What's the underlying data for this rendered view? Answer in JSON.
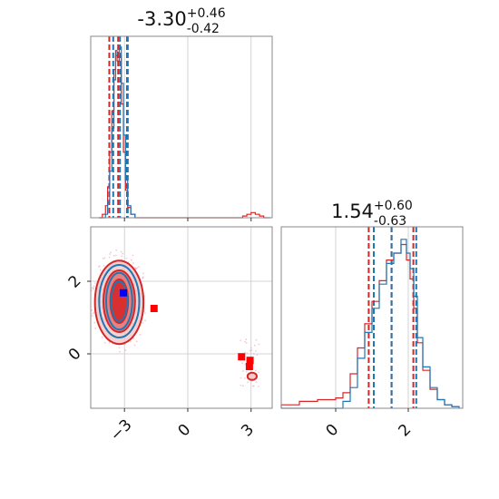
{
  "chart_data": {
    "type": "corner",
    "grid": true,
    "series": [
      {
        "color": "#d62728"
      },
      {
        "color": "#1f77b4"
      }
    ],
    "params": [
      {
        "median": "-3.30",
        "upper": "+0.46",
        "lower": "-0.42",
        "range": [
          -4.6,
          4.0
        ],
        "ticks": [
          {
            "v": -3,
            "label": "−3"
          },
          {
            "v": 0,
            "label": "0"
          },
          {
            "v": 3,
            "label": "3"
          }
        ],
        "quantiles": {
          "red": [
            -3.72,
            -3.3,
            -2.88
          ],
          "blue": [
            -3.62,
            -3.3,
            -2.93
          ]
        }
      },
      {
        "median": "1.54",
        "upper": "+0.60",
        "lower": "-0.63",
        "range": [
          -1.5,
          3.5
        ],
        "ticks": [
          {
            "v": 0,
            "label": "0"
          },
          {
            "v": 2,
            "label": "2"
          }
        ],
        "quantiles": {
          "red": [
            0.91,
            1.54,
            2.14
          ],
          "blue": [
            1.05,
            1.54,
            2.22
          ]
        }
      }
    ],
    "hist_x": [
      {
        "red": [
          [
            -4.2,
            0.0
          ],
          [
            -4.05,
            0.02
          ],
          [
            -3.9,
            0.07
          ],
          [
            -3.8,
            0.18
          ],
          [
            -3.7,
            0.38
          ],
          [
            -3.6,
            0.62
          ],
          [
            -3.5,
            0.86
          ],
          [
            -3.42,
            0.97
          ],
          [
            -3.35,
            0.91
          ],
          [
            -3.25,
            0.94
          ],
          [
            -3.15,
            0.66
          ],
          [
            -3.05,
            0.38
          ],
          [
            -2.95,
            0.16
          ],
          [
            -2.85,
            0.06
          ],
          [
            -2.7,
            0.02
          ],
          [
            -2.5,
            0.0
          ],
          [
            -1.0,
            0.0
          ],
          [
            2.4,
            0.0
          ],
          [
            2.6,
            0.01
          ],
          [
            2.8,
            0.02
          ],
          [
            3.0,
            0.03
          ],
          [
            3.2,
            0.02
          ],
          [
            3.4,
            0.01
          ],
          [
            3.6,
            0.0
          ],
          [
            3.9,
            0.0
          ]
        ],
        "blue": [
          [
            -4.2,
            0.0
          ],
          [
            -3.9,
            0.02
          ],
          [
            -3.8,
            0.09
          ],
          [
            -3.7,
            0.27
          ],
          [
            -3.6,
            0.52
          ],
          [
            -3.5,
            0.8
          ],
          [
            -3.42,
            0.94
          ],
          [
            -3.35,
            0.96
          ],
          [
            -3.25,
            0.99
          ],
          [
            -3.15,
            0.78
          ],
          [
            -3.05,
            0.48
          ],
          [
            -2.95,
            0.22
          ],
          [
            -2.85,
            0.07
          ],
          [
            -2.7,
            0.02
          ],
          [
            -2.5,
            0.0
          ]
        ]
      },
      {
        "red": [
          [
            -1.5,
            0.02
          ],
          [
            -1.0,
            0.04
          ],
          [
            -0.5,
            0.05
          ],
          [
            0.0,
            0.06
          ],
          [
            0.2,
            0.09
          ],
          [
            0.4,
            0.2
          ],
          [
            0.6,
            0.35
          ],
          [
            0.8,
            0.49
          ],
          [
            1.0,
            0.62
          ],
          [
            1.2,
            0.74
          ],
          [
            1.4,
            0.86
          ],
          [
            1.6,
            0.9
          ],
          [
            1.8,
            0.95
          ],
          [
            1.95,
            0.86
          ],
          [
            2.05,
            0.75
          ],
          [
            2.15,
            0.58
          ],
          [
            2.25,
            0.38
          ],
          [
            2.4,
            0.22
          ],
          [
            2.6,
            0.11
          ],
          [
            2.8,
            0.05
          ],
          [
            3.0,
            0.02
          ],
          [
            3.2,
            0.01
          ],
          [
            3.4,
            0.0
          ]
        ],
        "blue": [
          [
            -1.5,
            0.0
          ],
          [
            0.0,
            0.0
          ],
          [
            0.2,
            0.04
          ],
          [
            0.4,
            0.12
          ],
          [
            0.6,
            0.29
          ],
          [
            0.8,
            0.44
          ],
          [
            1.0,
            0.58
          ],
          [
            1.2,
            0.72
          ],
          [
            1.4,
            0.84
          ],
          [
            1.6,
            0.9
          ],
          [
            1.8,
            0.98
          ],
          [
            1.95,
            0.9
          ],
          [
            2.05,
            0.81
          ],
          [
            2.15,
            0.65
          ],
          [
            2.25,
            0.41
          ],
          [
            2.4,
            0.24
          ],
          [
            2.6,
            0.12
          ],
          [
            2.8,
            0.05
          ],
          [
            3.0,
            0.02
          ],
          [
            3.2,
            0.01
          ],
          [
            3.4,
            0.0
          ]
        ]
      }
    ],
    "contours": {
      "red": [
        {
          "level": "outer",
          "cx": -3.25,
          "cy": 1.42,
          "rx": 1.15,
          "ry": 1.15,
          "fill": "#f2c4c4",
          "opacity": 0.75
        },
        {
          "level": "middle",
          "cx": -3.25,
          "cy": 1.45,
          "rx": 0.75,
          "ry": 0.85,
          "fill": "#e06666",
          "opacity": 0.75
        },
        {
          "level": "inner",
          "cx": -3.25,
          "cy": 1.45,
          "rx": 0.42,
          "ry": 0.6,
          "fill": "#d62728",
          "opacity": 0.9
        },
        {
          "level": "tail",
          "cx": 3.05,
          "cy": -0.62,
          "rx": 0.22,
          "ry": 0.1,
          "fill": "#f2c4c4",
          "opacity": 0.9
        }
      ],
      "blue": [
        {
          "cx": -3.25,
          "cy": 1.45,
          "rx": 0.95,
          "ry": 1.0
        },
        {
          "cx": -3.25,
          "cy": 1.45,
          "rx": 0.62,
          "ry": 0.78
        },
        {
          "cx": -3.25,
          "cy": 1.45,
          "rx": 0.38,
          "ry": 0.55
        }
      ]
    },
    "markers": [
      {
        "x": -3.05,
        "y": 1.68,
        "color": "#0000ff"
      },
      {
        "x": -1.6,
        "y": 1.25,
        "color": "#ff0000"
      },
      {
        "x": 2.55,
        "y": -0.08,
        "color": "#ff0000"
      },
      {
        "x": 2.95,
        "y": -0.18,
        "color": "#ff0000"
      },
      {
        "x": 2.92,
        "y": -0.35,
        "color": "#ff0000"
      }
    ]
  }
}
